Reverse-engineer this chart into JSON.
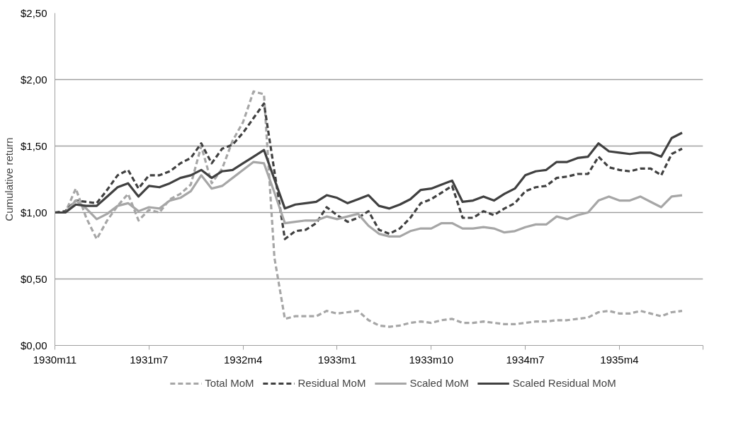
{
  "chart_data": {
    "type": "line",
    "ylabel": "Cumulative return",
    "categories": [
      "1930m11",
      null,
      null,
      null,
      null,
      null,
      null,
      null,
      null,
      "1931m7",
      null,
      null,
      null,
      null,
      null,
      null,
      null,
      null,
      "1932m4",
      null,
      null,
      null,
      null,
      null,
      null,
      null,
      null,
      "1933m1",
      null,
      null,
      null,
      null,
      null,
      null,
      null,
      null,
      "1933m10",
      null,
      null,
      null,
      null,
      null,
      null,
      null,
      null,
      "1934m7",
      null,
      null,
      null,
      null,
      null,
      null,
      null,
      null,
      "1935m4",
      null,
      null,
      null,
      null,
      null,
      null
    ],
    "ylim": [
      0,
      2.5
    ],
    "yticks": [
      {
        "value": 0,
        "label": "$0,00"
      },
      {
        "value": 0.5,
        "label": "$0,50"
      },
      {
        "value": 1,
        "label": "$1,00"
      },
      {
        "value": 1.5,
        "label": "$1,50"
      },
      {
        "value": 2,
        "label": "$2,00"
      },
      {
        "value": 2.5,
        "label": "$2,50"
      }
    ],
    "grid": "y",
    "legend": "bottom",
    "series": [
      {
        "name": "Total MoM",
        "color": "#a6a6a6",
        "line_style": "dashed",
        "values": [
          1.0,
          1.0,
          1.18,
          0.96,
          0.8,
          0.94,
          1.05,
          1.14,
          0.94,
          1.02,
          1.0,
          1.1,
          1.14,
          1.21,
          1.5,
          1.22,
          1.33,
          1.54,
          1.68,
          1.91,
          1.89,
          0.66,
          0.2,
          0.22,
          0.22,
          0.22,
          0.26,
          0.24,
          0.25,
          0.26,
          0.19,
          0.15,
          0.14,
          0.15,
          0.17,
          0.18,
          0.17,
          0.19,
          0.2,
          0.17,
          0.17,
          0.18,
          0.17,
          0.16,
          0.16,
          0.17,
          0.18,
          0.18,
          0.19,
          0.19,
          0.2,
          0.21,
          0.25,
          0.26,
          0.24,
          0.24,
          0.26,
          0.24,
          0.22,
          0.25,
          0.26
        ]
      },
      {
        "name": "Residual MoM",
        "color": "#404040",
        "line_style": "dashed",
        "values": [
          1.0,
          1.01,
          1.09,
          1.08,
          1.07,
          1.17,
          1.28,
          1.32,
          1.18,
          1.28,
          1.28,
          1.31,
          1.37,
          1.41,
          1.52,
          1.37,
          1.48,
          1.51,
          1.6,
          1.71,
          1.82,
          1.31,
          0.8,
          0.86,
          0.87,
          0.92,
          1.04,
          0.98,
          0.93,
          0.96,
          1.01,
          0.87,
          0.84,
          0.88,
          0.96,
          1.07,
          1.1,
          1.15,
          1.2,
          0.96,
          0.96,
          1.01,
          0.98,
          1.03,
          1.07,
          1.16,
          1.19,
          1.2,
          1.26,
          1.27,
          1.29,
          1.29,
          1.42,
          1.34,
          1.32,
          1.31,
          1.33,
          1.33,
          1.28,
          1.44,
          1.48
        ]
      },
      {
        "name": "Scaled MoM",
        "color": "#a6a6a6",
        "line_style": "solid",
        "values": [
          1.0,
          1.0,
          1.09,
          1.03,
          0.95,
          0.99,
          1.05,
          1.07,
          1.01,
          1.04,
          1.03,
          1.09,
          1.11,
          1.16,
          1.28,
          1.18,
          1.2,
          1.26,
          1.32,
          1.38,
          1.37,
          1.15,
          0.92,
          0.93,
          0.94,
          0.94,
          0.97,
          0.95,
          0.97,
          0.99,
          0.9,
          0.84,
          0.82,
          0.82,
          0.86,
          0.88,
          0.88,
          0.92,
          0.92,
          0.88,
          0.88,
          0.89,
          0.88,
          0.85,
          0.86,
          0.89,
          0.91,
          0.91,
          0.97,
          0.95,
          0.98,
          1.0,
          1.09,
          1.12,
          1.09,
          1.09,
          1.12,
          1.08,
          1.04,
          1.12,
          1.13
        ]
      },
      {
        "name": "Scaled Residual MoM",
        "color": "#404040",
        "line_style": "solid",
        "values": [
          1.0,
          1.0,
          1.06,
          1.05,
          1.05,
          1.12,
          1.19,
          1.22,
          1.12,
          1.2,
          1.19,
          1.22,
          1.26,
          1.28,
          1.32,
          1.26,
          1.31,
          1.32,
          1.37,
          1.42,
          1.47,
          1.25,
          1.03,
          1.06,
          1.07,
          1.08,
          1.13,
          1.11,
          1.07,
          1.1,
          1.13,
          1.05,
          1.03,
          1.06,
          1.1,
          1.17,
          1.18,
          1.21,
          1.24,
          1.08,
          1.09,
          1.12,
          1.09,
          1.14,
          1.18,
          1.28,
          1.31,
          1.32,
          1.38,
          1.38,
          1.41,
          1.42,
          1.52,
          1.46,
          1.45,
          1.44,
          1.45,
          1.45,
          1.42,
          1.56,
          1.6
        ]
      }
    ]
  }
}
